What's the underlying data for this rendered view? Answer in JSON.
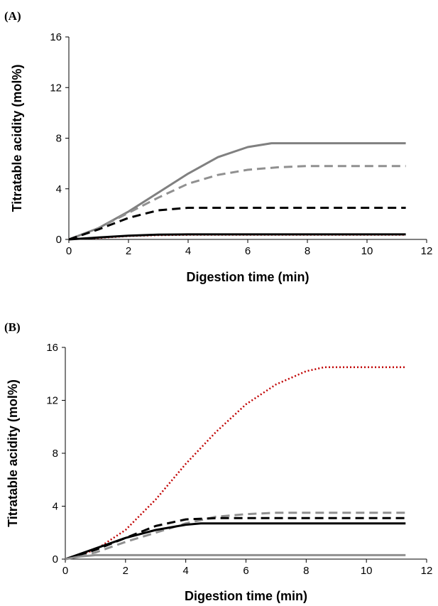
{
  "chart_data": [
    {
      "panel_label": "(A)",
      "type": "line",
      "xlabel": "Digestion time (min)",
      "ylabel": "Titratable acidity (mol%)",
      "xlim": [
        0,
        12
      ],
      "ylim": [
        0,
        16
      ],
      "xticks": [
        "0",
        "2",
        "4",
        "6",
        "8",
        "10",
        "12"
      ],
      "yticks": [
        "0",
        "4",
        "8",
        "12",
        "16"
      ],
      "grid": false,
      "legend": "none",
      "series": [
        {
          "color": "#808080",
          "dash": "solid",
          "width": 3,
          "x": [
            0,
            1,
            2,
            3,
            4,
            5,
            6,
            6.8,
            7,
            8,
            9,
            10,
            11.3
          ],
          "y": [
            0,
            0.9,
            2.2,
            3.7,
            5.2,
            6.5,
            7.3,
            7.6,
            7.6,
            7.6,
            7.6,
            7.6,
            7.6
          ]
        },
        {
          "color": "#909090",
          "dash": "long-dash",
          "width": 3,
          "x": [
            0,
            1,
            2,
            3,
            4,
            5,
            6,
            7,
            8,
            9,
            10,
            11.3
          ],
          "y": [
            0,
            0.9,
            2.1,
            3.3,
            4.4,
            5.1,
            5.5,
            5.7,
            5.8,
            5.8,
            5.8,
            5.8
          ]
        },
        {
          "color": "#000000",
          "dash": "long-dash",
          "width": 3,
          "x": [
            0,
            1,
            2,
            3,
            4,
            5,
            6,
            7,
            8,
            9,
            10,
            11.3
          ],
          "y": [
            0,
            0.8,
            1.7,
            2.3,
            2.5,
            2.5,
            2.5,
            2.5,
            2.5,
            2.5,
            2.5,
            2.5
          ]
        },
        {
          "color": "#c00000",
          "dash": "dotted",
          "width": 2,
          "x": [
            0,
            1,
            2,
            3,
            4,
            5,
            6,
            7,
            8,
            9,
            10,
            11.3
          ],
          "y": [
            0,
            0.1,
            0.25,
            0.32,
            0.35,
            0.35,
            0.35,
            0.35,
            0.35,
            0.35,
            0.35,
            0.35
          ]
        },
        {
          "color": "#000000",
          "dash": "solid",
          "width": 3,
          "x": [
            0,
            1,
            2,
            3,
            4,
            5,
            6,
            7,
            8,
            9,
            10,
            11.3
          ],
          "y": [
            0,
            0.15,
            0.3,
            0.38,
            0.4,
            0.4,
            0.4,
            0.4,
            0.4,
            0.4,
            0.4,
            0.4
          ]
        }
      ]
    },
    {
      "panel_label": "(B)",
      "type": "line",
      "xlabel": "Digestion time (min)",
      "ylabel": "Titratable acidity (mol%)",
      "xlim": [
        0,
        12
      ],
      "ylim": [
        0,
        16
      ],
      "xticks": [
        "0",
        "2",
        "4",
        "6",
        "8",
        "10",
        "12"
      ],
      "yticks": [
        "0",
        "4",
        "8",
        "12",
        "16"
      ],
      "grid": false,
      "legend": "none",
      "series": [
        {
          "color": "#c00000",
          "dash": "dotted",
          "width": 2.5,
          "x": [
            0,
            1,
            2,
            3,
            4,
            5,
            6,
            7,
            8,
            8.6,
            9,
            10,
            11.3
          ],
          "y": [
            0,
            0.7,
            2.2,
            4.5,
            7.2,
            9.6,
            11.7,
            13.2,
            14.2,
            14.5,
            14.5,
            14.5,
            14.5
          ]
        },
        {
          "color": "#909090",
          "dash": "long-dash",
          "width": 3,
          "x": [
            0,
            1,
            2,
            3,
            4,
            5,
            6,
            7,
            8,
            9,
            10,
            11.3
          ],
          "y": [
            0,
            0.5,
            1.3,
            2.0,
            2.7,
            3.2,
            3.4,
            3.5,
            3.5,
            3.5,
            3.5,
            3.5
          ]
        },
        {
          "color": "#000000",
          "dash": "long-dash",
          "width": 3,
          "x": [
            0,
            1,
            2,
            3,
            4,
            5,
            6,
            7,
            8,
            9,
            10,
            11.3
          ],
          "y": [
            0,
            0.7,
            1.6,
            2.5,
            3.0,
            3.1,
            3.1,
            3.1,
            3.1,
            3.1,
            3.1,
            3.1
          ]
        },
        {
          "color": "#000000",
          "dash": "solid",
          "width": 3,
          "x": [
            0,
            1,
            2,
            3,
            4,
            4.5,
            5,
            6,
            7,
            8,
            9,
            10,
            11.3
          ],
          "y": [
            0,
            0.8,
            1.6,
            2.2,
            2.6,
            2.7,
            2.7,
            2.7,
            2.7,
            2.7,
            2.7,
            2.7,
            2.7
          ]
        },
        {
          "color": "#909090",
          "dash": "solid",
          "width": 3,
          "x": [
            0,
            0.5,
            1,
            2,
            4,
            6,
            8,
            10,
            11.3
          ],
          "y": [
            0,
            0.2,
            0.3,
            0.3,
            0.3,
            0.3,
            0.3,
            0.3,
            0.3
          ]
        }
      ]
    }
  ]
}
